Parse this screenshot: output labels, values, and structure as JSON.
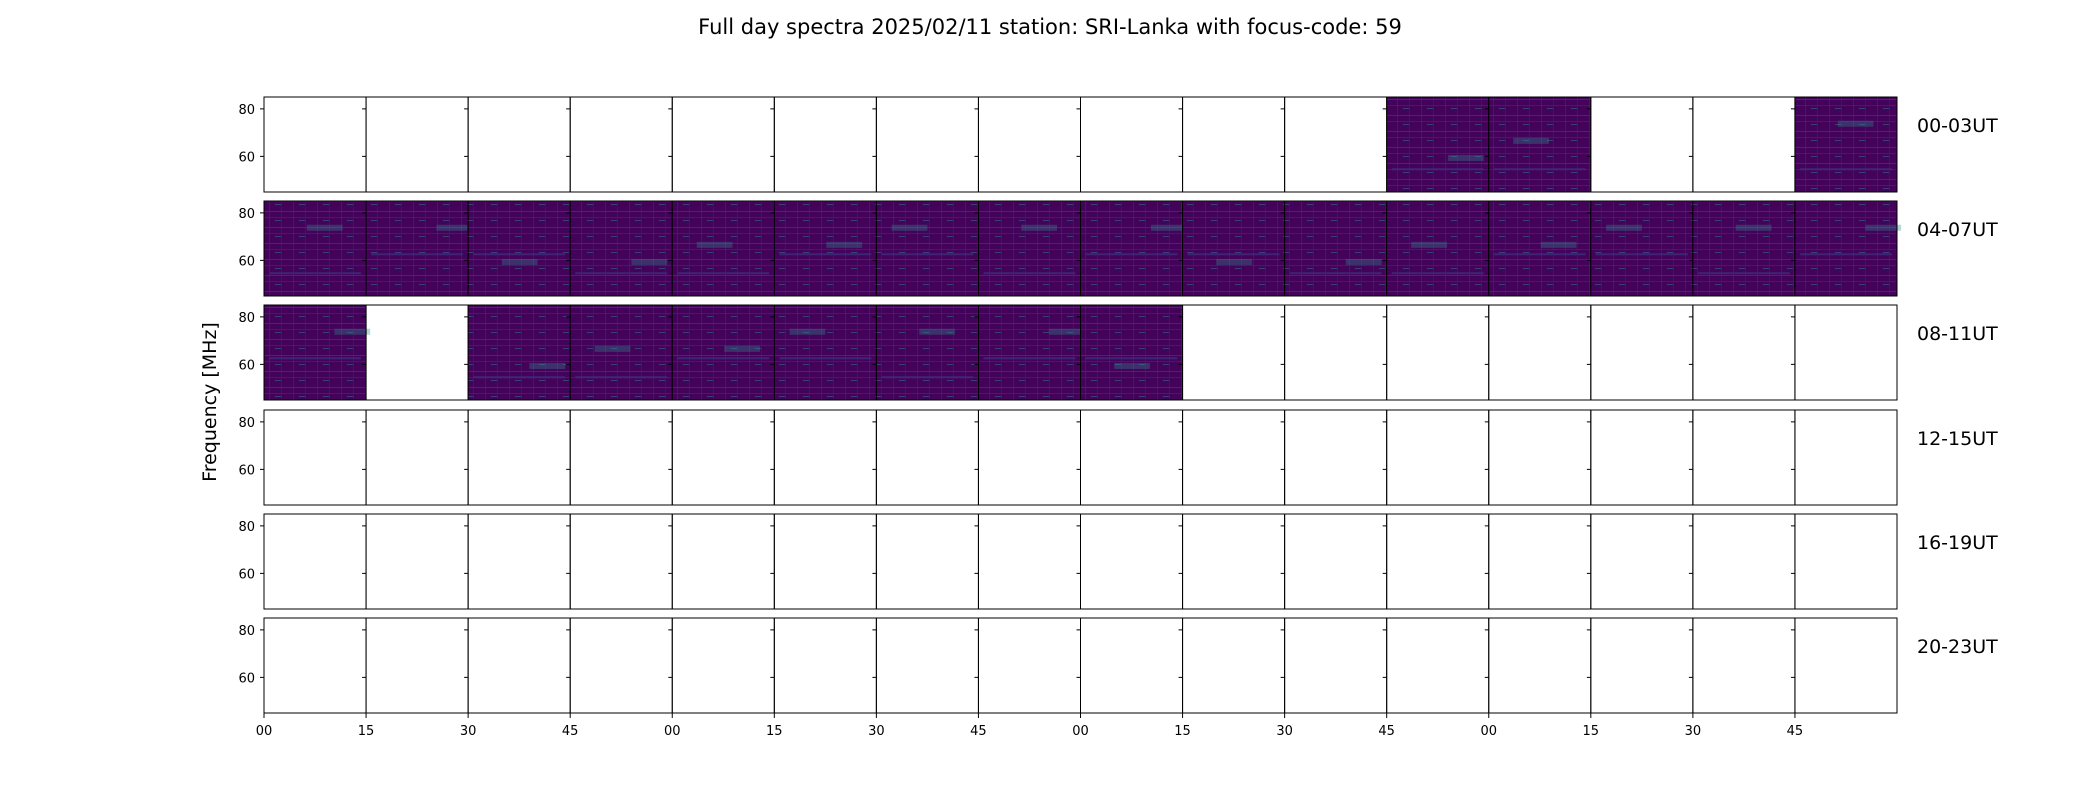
{
  "chart_data": {
    "type": "heatmap",
    "title": "Full day spectra 2025/02/11 station: SRI-Lanka with focus-code: 59",
    "ylabel": "Frequency [MHz]",
    "xlabel": "",
    "ylim": [
      45,
      85
    ],
    "yticks": [
      60,
      80
    ],
    "xticks": [
      "00",
      "15",
      "30",
      "45",
      "00",
      "15",
      "30",
      "45",
      "00",
      "15",
      "30",
      "45",
      "00",
      "15",
      "30",
      "45"
    ],
    "colormap": "viridis",
    "colors": {
      "background": "#44035a",
      "noise": "#3b2d7e",
      "bright": "#2a8c8c",
      "spot": "#3fbc8a"
    },
    "rows": [
      {
        "label": "00-03UT",
        "filled": [
          false,
          false,
          false,
          false,
          false,
          false,
          false,
          false,
          false,
          false,
          false,
          true,
          true,
          false,
          false,
          true
        ]
      },
      {
        "label": "04-07UT",
        "filled": [
          true,
          true,
          true,
          true,
          true,
          true,
          true,
          true,
          true,
          true,
          true,
          true,
          true,
          true,
          true,
          true
        ]
      },
      {
        "label": "08-11UT",
        "filled": [
          true,
          false,
          true,
          true,
          true,
          true,
          true,
          true,
          true,
          false,
          false,
          false,
          false,
          false,
          false,
          false
        ]
      },
      {
        "label": "12-15UT",
        "filled": [
          false,
          false,
          false,
          false,
          false,
          false,
          false,
          false,
          false,
          false,
          false,
          false,
          false,
          false,
          false,
          false
        ]
      },
      {
        "label": "16-19UT",
        "filled": [
          false,
          false,
          false,
          false,
          false,
          false,
          false,
          false,
          false,
          false,
          false,
          false,
          false,
          false,
          false,
          false
        ]
      },
      {
        "label": "20-23UT",
        "filled": [
          false,
          false,
          false,
          false,
          false,
          false,
          false,
          false,
          false,
          false,
          false,
          false,
          false,
          false,
          false,
          false
        ]
      }
    ]
  }
}
